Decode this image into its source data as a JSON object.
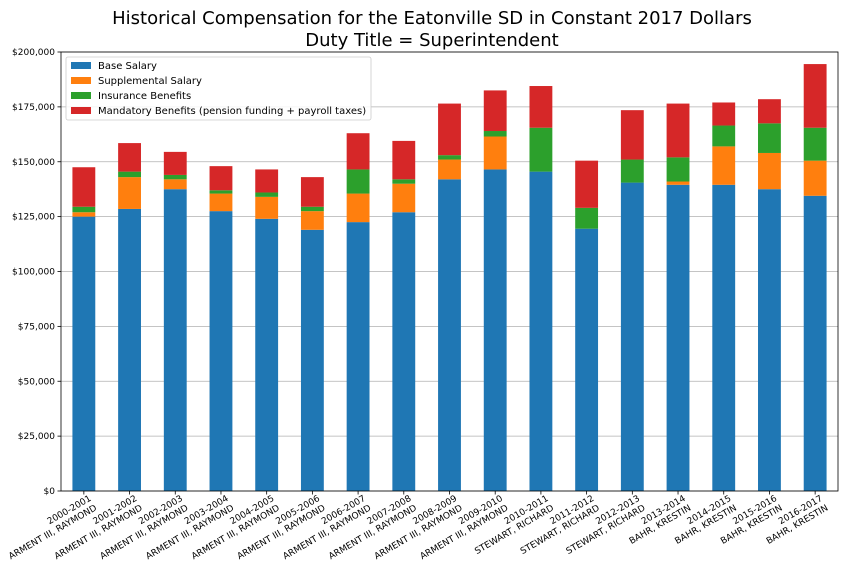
{
  "chart_data": {
    "type": "bar",
    "stacked": true,
    "title": "Historical Compensation for the Eatonville SD in Constant 2017 Dollars",
    "subtitle": "Duty Title = Superintendent",
    "xlabel": "",
    "ylabel": "",
    "ylim": [
      0,
      200000
    ],
    "yticks": [
      "$0",
      "$25,000",
      "$50,000",
      "$75,000",
      "$100,000",
      "$125,000",
      "$150,000",
      "$175,000",
      "$200,000"
    ],
    "ytick_values": [
      0,
      25000,
      50000,
      75000,
      100000,
      125000,
      150000,
      175000,
      200000
    ],
    "grid": true,
    "legend_position": "top-left",
    "categories": [
      [
        "2000-2001",
        "ARMENT III, RAYMOND"
      ],
      [
        "2001-2002",
        "ARMENT III, RAYMOND"
      ],
      [
        "2002-2003",
        "ARMENT III, RAYMOND"
      ],
      [
        "2003-2004",
        "ARMENT III, RAYMOND"
      ],
      [
        "2004-2005",
        "ARMENT III, RAYMOND"
      ],
      [
        "2005-2006",
        "ARMENT III, RAYMOND"
      ],
      [
        "2006-2007",
        "ARMENT III, RAYMOND"
      ],
      [
        "2007-2008",
        "ARMENT III, RAYMOND"
      ],
      [
        "2008-2009",
        "ARMENT III, RAYMOND"
      ],
      [
        "2009-2010",
        "ARMENT III, RAYMOND"
      ],
      [
        "2010-2011",
        "STEWART, RICHARD"
      ],
      [
        "2011-2012",
        "STEWART, RICHARD"
      ],
      [
        "2012-2013",
        "STEWART, RICHARD"
      ],
      [
        "2013-2014",
        "BAHR, KRESTIN"
      ],
      [
        "2014-2015",
        "BAHR, KRESTIN"
      ],
      [
        "2015-2016",
        "BAHR, KRESTIN"
      ],
      [
        "2016-2017",
        "BAHR, KRESTIN"
      ]
    ],
    "series": [
      {
        "name": "Base Salary",
        "color": "#1f77b4",
        "values": [
          125000,
          128500,
          137500,
          127500,
          124000,
          119000,
          122500,
          127000,
          142000,
          146500,
          145500,
          119500,
          140500,
          139500,
          139500,
          137500,
          134500
        ]
      },
      {
        "name": "Supplemental Salary",
        "color": "#ff7f0e",
        "values": [
          2000,
          14500,
          4500,
          8000,
          10000,
          8500,
          13000,
          13000,
          9000,
          15000,
          0,
          0,
          0,
          1500,
          17500,
          16500,
          16000
        ]
      },
      {
        "name": "Insurance Benefits",
        "color": "#2ca02c",
        "values": [
          2500,
          2500,
          2000,
          1500,
          2000,
          2000,
          11000,
          2000,
          2000,
          2500,
          20000,
          9500,
          10500,
          11000,
          9500,
          13500,
          15000
        ]
      },
      {
        "name": "Mandatory Benefits (pension funding + payroll taxes)",
        "color": "#d62728",
        "values": [
          18000,
          13000,
          10500,
          11000,
          10500,
          13500,
          16500,
          17500,
          23500,
          18500,
          19000,
          21500,
          22500,
          24500,
          10500,
          11000,
          29000
        ]
      }
    ]
  }
}
